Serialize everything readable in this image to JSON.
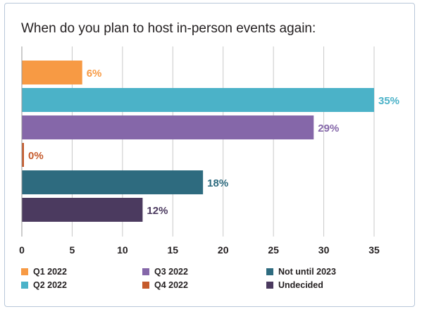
{
  "chart_data": {
    "type": "bar",
    "orientation": "horizontal",
    "title": "When do you plan to host in-person events again:",
    "categories": [
      "Q1 2022",
      "Q2 2022",
      "Q3 2022",
      "Q4 2022",
      "Not until 2023",
      "Undecided"
    ],
    "values": [
      6,
      35,
      29,
      0,
      18,
      12
    ],
    "value_labels": [
      "6%",
      "35%",
      "29%",
      "0%",
      "18%",
      "12%"
    ],
    "colors": [
      "#f79a44",
      "#4bb2c8",
      "#8567a9",
      "#c55a2b",
      "#2e6b7f",
      "#4b3a5f"
    ],
    "xlim": [
      0,
      35
    ],
    "xticks": [
      0,
      5,
      10,
      15,
      20,
      25,
      30,
      35
    ],
    "grid": true,
    "legend": "bottom"
  }
}
